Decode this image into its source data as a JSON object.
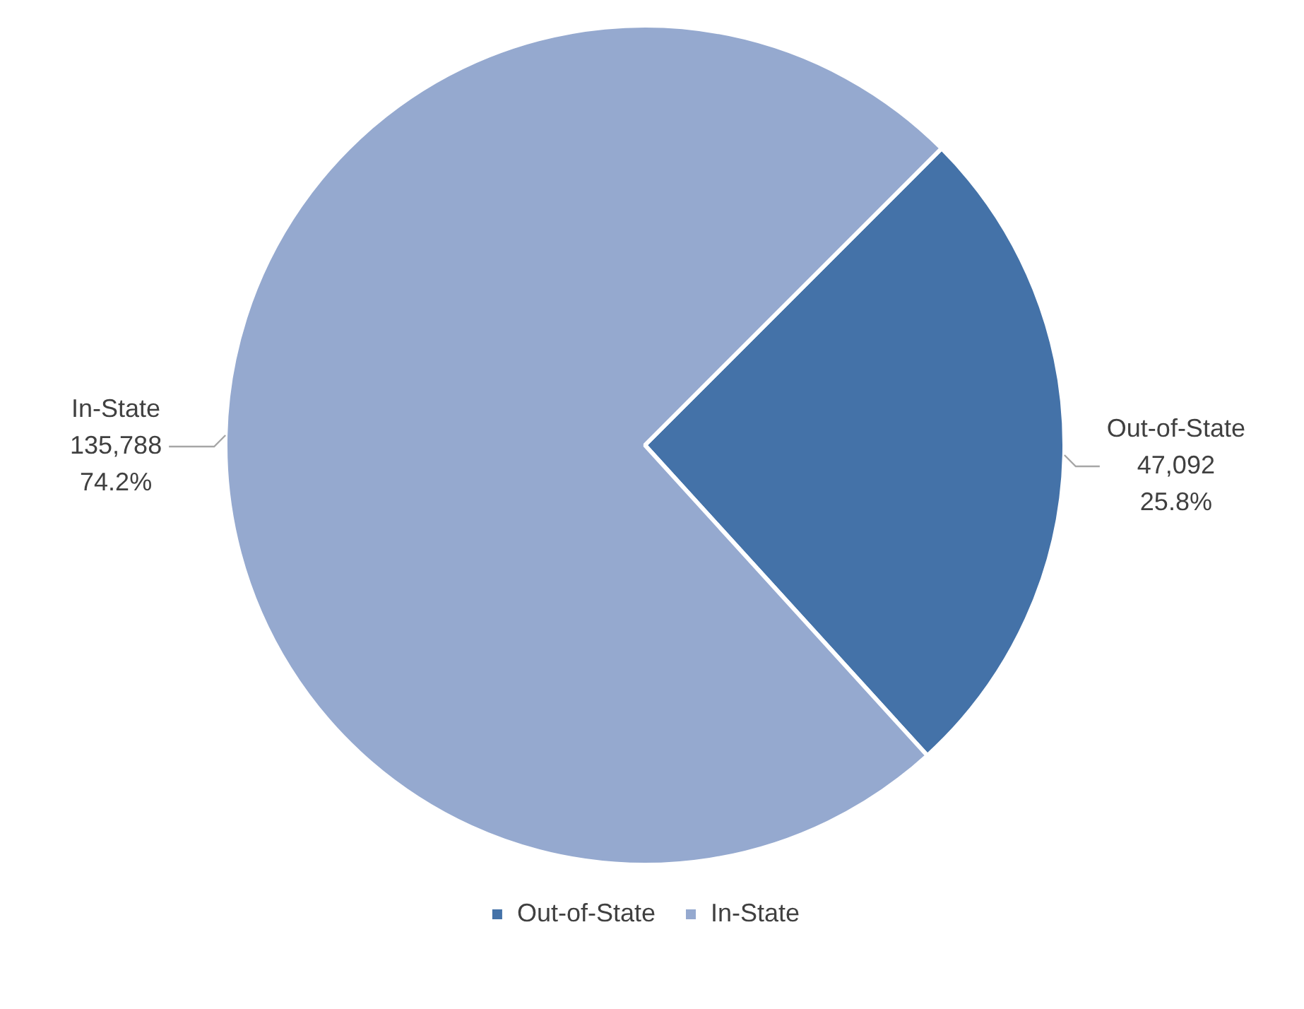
{
  "chart_data": {
    "type": "pie",
    "categories": [
      "Out-of-State",
      "In-State"
    ],
    "values": [
      47092,
      135788
    ],
    "colors": [
      "#4472a8",
      "#95a9cf"
    ],
    "value_labels": [
      "47,092\n25.8%",
      "135,788\n74.2%"
    ],
    "legend": "bottom"
  }
}
